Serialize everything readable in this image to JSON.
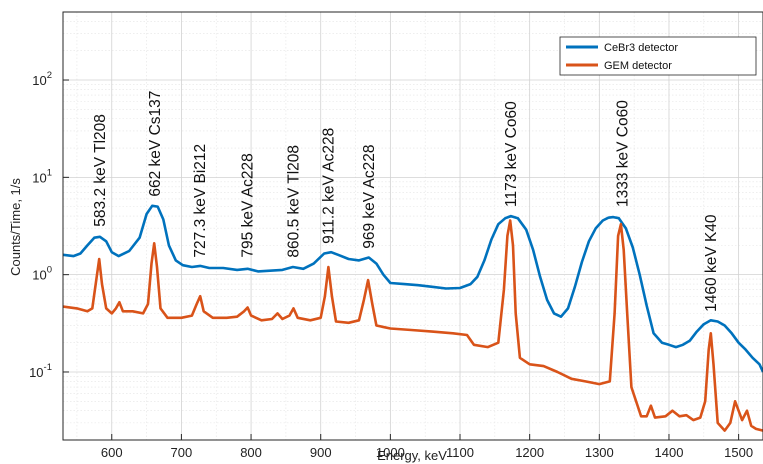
{
  "chart_data": {
    "type": "line",
    "title": "",
    "xlabel": "Energy, keV",
    "ylabel": "Counts/Time, 1/s",
    "xlim": [
      530,
      1535
    ],
    "ylim": [
      0.02,
      500
    ],
    "yscale": "log",
    "grid": true,
    "minor_grid": true,
    "legend_position": "top-right",
    "x_ticks": [
      600,
      700,
      800,
      900,
      1000,
      1100,
      1200,
      1300,
      1400,
      1500
    ],
    "x_tick_labels": [
      "600",
      "700",
      "800",
      "900",
      "1000",
      "1100",
      "1200",
      "1300",
      "1400",
      "1500"
    ],
    "y_ticks": [
      {
        "value": 0.1,
        "base": "10",
        "exp": "-1"
      },
      {
        "value": 1,
        "base": "10",
        "exp": "0"
      },
      {
        "value": 10,
        "base": "10",
        "exp": "1"
      },
      {
        "value": 100,
        "base": "10",
        "exp": "2"
      }
    ],
    "series": [
      {
        "name": "CeBr3 detector",
        "color": "#0072BD",
        "points": [
          [
            530,
            1.6
          ],
          [
            545,
            1.55
          ],
          [
            555,
            1.65
          ],
          [
            565,
            2.0
          ],
          [
            575,
            2.4
          ],
          [
            583,
            2.45
          ],
          [
            592,
            2.2
          ],
          [
            600,
            1.7
          ],
          [
            610,
            1.55
          ],
          [
            625,
            1.75
          ],
          [
            640,
            2.4
          ],
          [
            650,
            4.2
          ],
          [
            658,
            5.1
          ],
          [
            666,
            5.0
          ],
          [
            674,
            3.7
          ],
          [
            682,
            2.0
          ],
          [
            692,
            1.4
          ],
          [
            702,
            1.25
          ],
          [
            715,
            1.2
          ],
          [
            727,
            1.23
          ],
          [
            740,
            1.17
          ],
          [
            760,
            1.17
          ],
          [
            780,
            1.12
          ],
          [
            795,
            1.15
          ],
          [
            810,
            1.08
          ],
          [
            830,
            1.1
          ],
          [
            845,
            1.12
          ],
          [
            860,
            1.2
          ],
          [
            875,
            1.15
          ],
          [
            890,
            1.3
          ],
          [
            905,
            1.65
          ],
          [
            915,
            1.7
          ],
          [
            925,
            1.6
          ],
          [
            940,
            1.45
          ],
          [
            955,
            1.4
          ],
          [
            969,
            1.5
          ],
          [
            980,
            1.3
          ],
          [
            990,
            1.0
          ],
          [
            1000,
            0.82
          ],
          [
            1020,
            0.8
          ],
          [
            1040,
            0.78
          ],
          [
            1060,
            0.75
          ],
          [
            1080,
            0.72
          ],
          [
            1100,
            0.73
          ],
          [
            1115,
            0.8
          ],
          [
            1125,
            0.95
          ],
          [
            1135,
            1.4
          ],
          [
            1145,
            2.3
          ],
          [
            1155,
            3.3
          ],
          [
            1165,
            3.8
          ],
          [
            1173,
            4.0
          ],
          [
            1183,
            3.8
          ],
          [
            1195,
            2.9
          ],
          [
            1205,
            1.8
          ],
          [
            1215,
            0.95
          ],
          [
            1225,
            0.55
          ],
          [
            1235,
            0.4
          ],
          [
            1245,
            0.37
          ],
          [
            1255,
            0.45
          ],
          [
            1265,
            0.75
          ],
          [
            1275,
            1.35
          ],
          [
            1285,
            2.2
          ],
          [
            1295,
            3.0
          ],
          [
            1305,
            3.6
          ],
          [
            1313,
            3.85
          ],
          [
            1320,
            3.9
          ],
          [
            1328,
            3.8
          ],
          [
            1338,
            3.0
          ],
          [
            1348,
            1.9
          ],
          [
            1358,
            1.0
          ],
          [
            1368,
            0.48
          ],
          [
            1378,
            0.25
          ],
          [
            1390,
            0.2
          ],
          [
            1400,
            0.19
          ],
          [
            1410,
            0.18
          ],
          [
            1420,
            0.19
          ],
          [
            1430,
            0.21
          ],
          [
            1440,
            0.26
          ],
          [
            1450,
            0.31
          ],
          [
            1460,
            0.34
          ],
          [
            1470,
            0.33
          ],
          [
            1480,
            0.3
          ],
          [
            1490,
            0.25
          ],
          [
            1500,
            0.2
          ],
          [
            1510,
            0.17
          ],
          [
            1520,
            0.14
          ],
          [
            1530,
            0.12
          ],
          [
            1535,
            0.1
          ]
        ]
      },
      {
        "name": "GEM detector",
        "color": "#D95319",
        "points": [
          [
            530,
            0.47
          ],
          [
            550,
            0.45
          ],
          [
            565,
            0.42
          ],
          [
            572,
            0.45
          ],
          [
            578,
            0.9
          ],
          [
            582,
            1.45
          ],
          [
            586,
            0.8
          ],
          [
            592,
            0.45
          ],
          [
            600,
            0.4
          ],
          [
            606,
            0.45
          ],
          [
            611,
            0.52
          ],
          [
            616,
            0.42
          ],
          [
            630,
            0.42
          ],
          [
            645,
            0.4
          ],
          [
            652,
            0.5
          ],
          [
            657,
            1.3
          ],
          [
            661,
            2.1
          ],
          [
            665,
            1.2
          ],
          [
            670,
            0.45
          ],
          [
            680,
            0.36
          ],
          [
            700,
            0.36
          ],
          [
            715,
            0.38
          ],
          [
            722,
            0.5
          ],
          [
            727,
            0.6
          ],
          [
            732,
            0.42
          ],
          [
            745,
            0.36
          ],
          [
            765,
            0.36
          ],
          [
            780,
            0.37
          ],
          [
            790,
            0.42
          ],
          [
            795,
            0.46
          ],
          [
            800,
            0.38
          ],
          [
            815,
            0.34
          ],
          [
            830,
            0.35
          ],
          [
            838,
            0.4
          ],
          [
            845,
            0.35
          ],
          [
            855,
            0.38
          ],
          [
            861,
            0.45
          ],
          [
            867,
            0.36
          ],
          [
            885,
            0.34
          ],
          [
            900,
            0.36
          ],
          [
            906,
            0.6
          ],
          [
            911,
            1.2
          ],
          [
            916,
            0.6
          ],
          [
            922,
            0.33
          ],
          [
            940,
            0.32
          ],
          [
            955,
            0.34
          ],
          [
            962,
            0.55
          ],
          [
            968,
            0.88
          ],
          [
            974,
            0.5
          ],
          [
            980,
            0.3
          ],
          [
            1000,
            0.28
          ],
          [
            1030,
            0.27
          ],
          [
            1060,
            0.26
          ],
          [
            1090,
            0.25
          ],
          [
            1110,
            0.24
          ],
          [
            1120,
            0.19
          ],
          [
            1140,
            0.18
          ],
          [
            1155,
            0.2
          ],
          [
            1163,
            0.7
          ],
          [
            1168,
            2.5
          ],
          [
            1172,
            3.6
          ],
          [
            1176,
            2.0
          ],
          [
            1180,
            0.4
          ],
          [
            1186,
            0.14
          ],
          [
            1200,
            0.12
          ],
          [
            1220,
            0.115
          ],
          [
            1240,
            0.1
          ],
          [
            1260,
            0.085
          ],
          [
            1280,
            0.08
          ],
          [
            1300,
            0.075
          ],
          [
            1315,
            0.08
          ],
          [
            1322,
            0.4
          ],
          [
            1327,
            2.5
          ],
          [
            1331,
            3.3
          ],
          [
            1335,
            1.8
          ],
          [
            1340,
            0.4
          ],
          [
            1346,
            0.07
          ],
          [
            1360,
            0.035
          ],
          [
            1368,
            0.035
          ],
          [
            1374,
            0.045
          ],
          [
            1380,
            0.034
          ],
          [
            1395,
            0.035
          ],
          [
            1405,
            0.04
          ],
          [
            1415,
            0.035
          ],
          [
            1425,
            0.036
          ],
          [
            1435,
            0.032
          ],
          [
            1445,
            0.034
          ],
          [
            1452,
            0.05
          ],
          [
            1457,
            0.17
          ],
          [
            1460,
            0.25
          ],
          [
            1464,
            0.12
          ],
          [
            1470,
            0.03
          ],
          [
            1480,
            0.025
          ],
          [
            1488,
            0.03
          ],
          [
            1495,
            0.05
          ],
          [
            1500,
            0.04
          ],
          [
            1505,
            0.032
          ],
          [
            1512,
            0.04
          ],
          [
            1518,
            0.028
          ],
          [
            1525,
            0.026
          ],
          [
            1535,
            0.025
          ]
        ]
      }
    ],
    "annotations": [
      {
        "text": "583.2 keV Tl208",
        "x": 583,
        "y": 2.7
      },
      {
        "text": "662 keV Cs137",
        "x": 662,
        "y": 5.5
      },
      {
        "text": "727.3 keV Bi212",
        "x": 727,
        "y": 1.3
      },
      {
        "text": "795 keV Ac228",
        "x": 795,
        "y": 1.3
      },
      {
        "text": "860.5 keV Tl208",
        "x": 861,
        "y": 1.3
      },
      {
        "text": "911.2 keV Ac228",
        "x": 911,
        "y": 1.8
      },
      {
        "text": "969 keV Ac228",
        "x": 969,
        "y": 1.6
      },
      {
        "text": "1173 keV Co60",
        "x": 1173,
        "y": 4.3
      },
      {
        "text": "1333 keV Co60",
        "x": 1333,
        "y": 4.3
      },
      {
        "text": "1460 keV K40",
        "x": 1460,
        "y": 0.36
      }
    ]
  }
}
